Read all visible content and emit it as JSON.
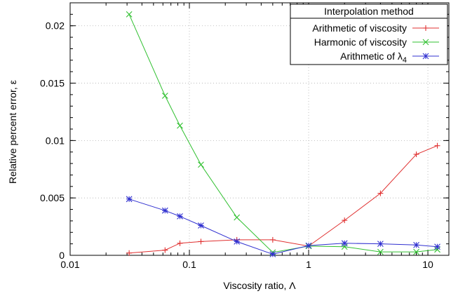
{
  "chart_data": {
    "type": "line",
    "xlabel": "Viscosity ratio, Λ",
    "ylabel": "Relative percent error, ε",
    "x_scale": "log",
    "xlim": [
      0.01,
      15
    ],
    "ylim": [
      0,
      0.022
    ],
    "grid": true,
    "legend_position": "top-right",
    "legend_title": "Interpolation method",
    "x_ticks": [
      {
        "value": 0.01,
        "label": "0.01"
      },
      {
        "value": 0.1,
        "label": "0.1"
      },
      {
        "value": 1,
        "label": "1"
      },
      {
        "value": 10,
        "label": "10"
      }
    ],
    "y_ticks": [
      {
        "value": 0,
        "label": "0"
      },
      {
        "value": 0.005,
        "label": "0.005"
      },
      {
        "value": 0.01,
        "label": "0.01"
      },
      {
        "value": 0.015,
        "label": "0.015"
      },
      {
        "value": 0.02,
        "label": "0.02"
      }
    ],
    "series": [
      {
        "name": "Arithmetic of viscosity",
        "name_main": "Arithmetic of viscosity",
        "color": "#e03030",
        "marker": "plus",
        "x": [
          0.03125,
          0.0625,
          0.0833,
          0.125,
          0.25,
          0.5,
          1,
          2,
          4,
          8,
          12
        ],
        "y": [
          0.0002,
          0.00045,
          0.00105,
          0.0012,
          0.00135,
          0.00135,
          0.0008,
          0.00305,
          0.0054,
          0.0088,
          0.00955
        ]
      },
      {
        "name": "Harmonic of viscosity",
        "name_main": "Harmonic of viscosity",
        "color": "#30c030",
        "marker": "cross",
        "x": [
          0.03125,
          0.0625,
          0.0833,
          0.125,
          0.25,
          0.5,
          1,
          2,
          4,
          8,
          12
        ],
        "y": [
          0.021,
          0.0139,
          0.0113,
          0.0079,
          0.0033,
          0.00025,
          0.0008,
          0.00075,
          0.0003,
          0.0003,
          0.0005
        ]
      },
      {
        "name": "Arithmetic of λ4",
        "name_main": "Arithmetic of λ",
        "name_sub": "4",
        "color": "#3030d0",
        "marker": "star",
        "x": [
          0.03125,
          0.0625,
          0.0833,
          0.125,
          0.25,
          0.5,
          1,
          2,
          4,
          8,
          12
        ],
        "y": [
          0.0049,
          0.0039,
          0.0034,
          0.0026,
          0.0012,
          0.0001,
          0.00085,
          0.00105,
          0.001,
          0.0009,
          0.00075
        ]
      }
    ]
  }
}
